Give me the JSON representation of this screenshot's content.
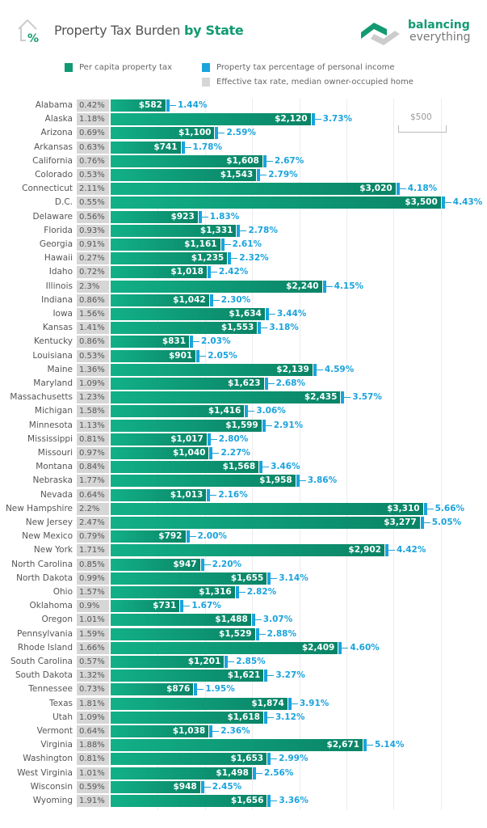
{
  "header": {
    "title_plain": "Property Tax Burden",
    "title_bold": "by State",
    "logo_line1": "balancing",
    "logo_line2": "everything"
  },
  "colors": {
    "per_capita": "#0f9a74",
    "income_pct": "#1aa3dd",
    "effective_rate": "#d6d6d6"
  },
  "chart_data": {
    "type": "bar",
    "title": "Property Tax Burden by State",
    "legend": [
      "Per capita property tax",
      "Property tax percentage of personal income",
      "Effective tax rate, median owner-occupied home"
    ],
    "legend_placement": "top",
    "scale_label": "$500",
    "grid": true,
    "xlim": [
      0,
      3500
    ],
    "categories": [
      "Alabama",
      "Alaska",
      "Arizona",
      "Arkansas",
      "California",
      "Colorado",
      "Connecticut",
      "D.C.",
      "Delaware",
      "Florida",
      "Georgia",
      "Hawaii",
      "Idaho",
      "Illinois",
      "Indiana",
      "Iowa",
      "Kansas",
      "Kentucky",
      "Louisiana",
      "Maine",
      "Maryland",
      "Massachusetts",
      "Michigan",
      "Minnesota",
      "Mississippi",
      "Missouri",
      "Montana",
      "Nebraska",
      "Nevada",
      "New Hampshire",
      "New Jersey",
      "New Mexico",
      "New York",
      "North Carolina",
      "North Dakota",
      "Ohio",
      "Oklahoma",
      "Oregon",
      "Pennsylvania",
      "Rhode Island",
      "South Carolina",
      "South Dakota",
      "Tennessee",
      "Texas",
      "Utah",
      "Vermont",
      "Virginia",
      "Washington",
      "West Virginia",
      "Wisconsin",
      "Wyoming"
    ],
    "series": [
      {
        "name": "Per capita property tax",
        "labels": [
          "$582",
          "$2,120",
          "$1,100",
          "$741",
          "$1,608",
          "$1,543",
          "$3,020",
          "$3,500",
          "$923",
          "$1,331",
          "$1,161",
          "$1,235",
          "$1,018",
          "$2,240",
          "$1,042",
          "$1,634",
          "$1,553",
          "$831",
          "$901",
          "$2,139",
          "$1,623",
          "$2,435",
          "$1,416",
          "$1,599",
          "$1,017",
          "$1,040",
          "$1,568",
          "$1,958",
          "$1,013",
          "$3,310",
          "$3,277",
          "$792",
          "$2,902",
          "$947",
          "$1,655",
          "$1,316",
          "$731",
          "$1,488",
          "$1,529",
          "$2,409",
          "$1,201",
          "$1,621",
          "$876",
          "$1,874",
          "$1,618",
          "$1,038",
          "$2,671",
          "$1,653",
          "$1,498",
          "$948",
          "$1,656"
        ],
        "values": [
          582,
          2120,
          1100,
          741,
          1608,
          1543,
          3020,
          3500,
          923,
          1331,
          1161,
          1235,
          1018,
          2240,
          1042,
          1634,
          1553,
          831,
          901,
          2139,
          1623,
          2435,
          1416,
          1599,
          1017,
          1040,
          1568,
          1958,
          1013,
          3310,
          3277,
          792,
          2902,
          947,
          1655,
          1316,
          731,
          1488,
          1529,
          2409,
          1201,
          1621,
          876,
          1874,
          1618,
          1038,
          2671,
          1653,
          1498,
          948,
          1656
        ]
      },
      {
        "name": "Property tax percentage of personal income",
        "labels": [
          "1.44%",
          "3.73%",
          "2.59%",
          "1.78%",
          "2.67%",
          "2.79%",
          "4.18%",
          "4.43%",
          "1.83%",
          "2.78%",
          "2.61%",
          "2.32%",
          "2.42%",
          "4.15%",
          "2.30%",
          "3.44%",
          "3.18%",
          "2.03%",
          "2.05%",
          "4.59%",
          "2.68%",
          "3.57%",
          "3.06%",
          "2.91%",
          "2.80%",
          "2.27%",
          "3.46%",
          "3.86%",
          "2.16%",
          "5.66%",
          "5.05%",
          "2.00%",
          "4.42%",
          "2.20%",
          "3.14%",
          "2.82%",
          "1.67%",
          "3.07%",
          "2.88%",
          "4.60%",
          "2.85%",
          "3.27%",
          "1.95%",
          "3.91%",
          "3.12%",
          "2.36%",
          "5.14%",
          "2.99%",
          "2.56%",
          "2.45%",
          "3.36%"
        ]
      },
      {
        "name": "Effective tax rate, median owner-occupied home",
        "labels": [
          "0.42%",
          "1.18%",
          "0.69%",
          "0.63%",
          "0.76%",
          "0.53%",
          "2.11%",
          "0.55%",
          "0.56%",
          "0.93%",
          "0.91%",
          "0.27%",
          "0.72%",
          "2.3%",
          "0.86%",
          "1.56%",
          "1.41%",
          "0.86%",
          "0.53%",
          "1.36%",
          "1.09%",
          "1.23%",
          "1.58%",
          "1.13%",
          "0.81%",
          "0.97%",
          "0.84%",
          "1.77%",
          "0.64%",
          "2.2%",
          "2.47%",
          "0.79%",
          "1.71%",
          "0.85%",
          "0.99%",
          "1.57%",
          "0.9%",
          "1.01%",
          "1.59%",
          "1.66%",
          "0.57%",
          "1.32%",
          "0.73%",
          "1.81%",
          "1.09%",
          "0.64%",
          "1.88%",
          "0.81%",
          "1.01%",
          "0.59%",
          "1.91%"
        ]
      }
    ]
  }
}
